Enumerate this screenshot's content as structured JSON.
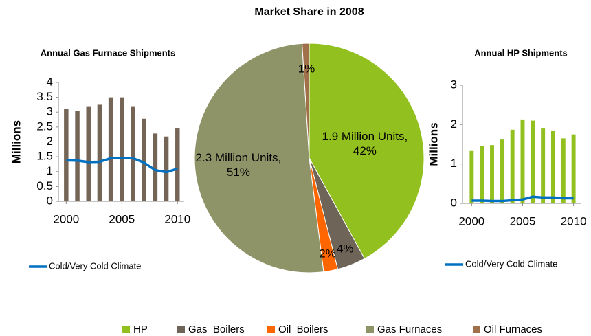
{
  "chart_data": [
    {
      "type": "pie",
      "title": "Market Share in 2008",
      "categories": [
        "HP",
        "Gas  Boilers",
        "Oil  Boilers",
        "Gas Furnaces",
        "Oil Furnaces"
      ],
      "values": [
        42,
        4,
        2,
        51,
        1
      ],
      "value_labels": [
        "1.9 Million Units, 42%",
        "4%",
        "2%",
        "2.3 Million Units, 51%",
        "1%"
      ],
      "colors": [
        "#92c01f",
        "#6e6457",
        "#ff6600",
        "#8f9468",
        "#a0704a"
      ]
    },
    {
      "type": "bar",
      "title": "Annual Gas Furnace Shipments",
      "ylabel": "Millions",
      "x": [
        2000,
        2001,
        2002,
        2003,
        2004,
        2005,
        2006,
        2007,
        2008,
        2009,
        2010
      ],
      "series": [
        {
          "color": "#756556",
          "values": [
            3.1,
            3.05,
            3.2,
            3.25,
            3.5,
            3.5,
            3.2,
            2.78,
            2.28,
            2.18,
            2.45
          ]
        },
        {
          "name": "Cold/Very Cold Climate",
          "type": "line",
          "color": "#0070c0",
          "values": [
            1.38,
            1.37,
            1.32,
            1.33,
            1.45,
            1.45,
            1.45,
            1.3,
            1.05,
            0.98,
            1.1
          ]
        }
      ],
      "xlim": [
        1999.3,
        2010.6
      ],
      "xticks": [
        2000,
        2005,
        2010
      ],
      "ylim": [
        0,
        4
      ],
      "yticks": [
        0,
        0.5,
        1,
        1.5,
        2,
        2.5,
        3,
        3.5,
        4
      ]
    },
    {
      "type": "bar",
      "title": "Annual HP Shipments",
      "ylabel": "Millions",
      "x": [
        2000,
        2001,
        2002,
        2003,
        2004,
        2005,
        2006,
        2007,
        2008,
        2009,
        2010
      ],
      "series": [
        {
          "color": "#92c01f",
          "values": [
            1.33,
            1.45,
            1.48,
            1.62,
            1.87,
            2.13,
            2.1,
            1.9,
            1.85,
            1.65,
            1.75
          ]
        },
        {
          "name": "Cold/Very Cold Climate",
          "type": "line",
          "color": "#0070c0",
          "values": [
            0.07,
            0.07,
            0.06,
            0.06,
            0.08,
            0.1,
            0.17,
            0.15,
            0.15,
            0.13,
            0.13
          ]
        }
      ],
      "xlim": [
        1999.1,
        2010.7
      ],
      "xticks": [
        2000,
        2005,
        2010
      ],
      "ylim": [
        0,
        3
      ],
      "yticks": [
        0,
        1,
        2,
        3
      ]
    }
  ]
}
